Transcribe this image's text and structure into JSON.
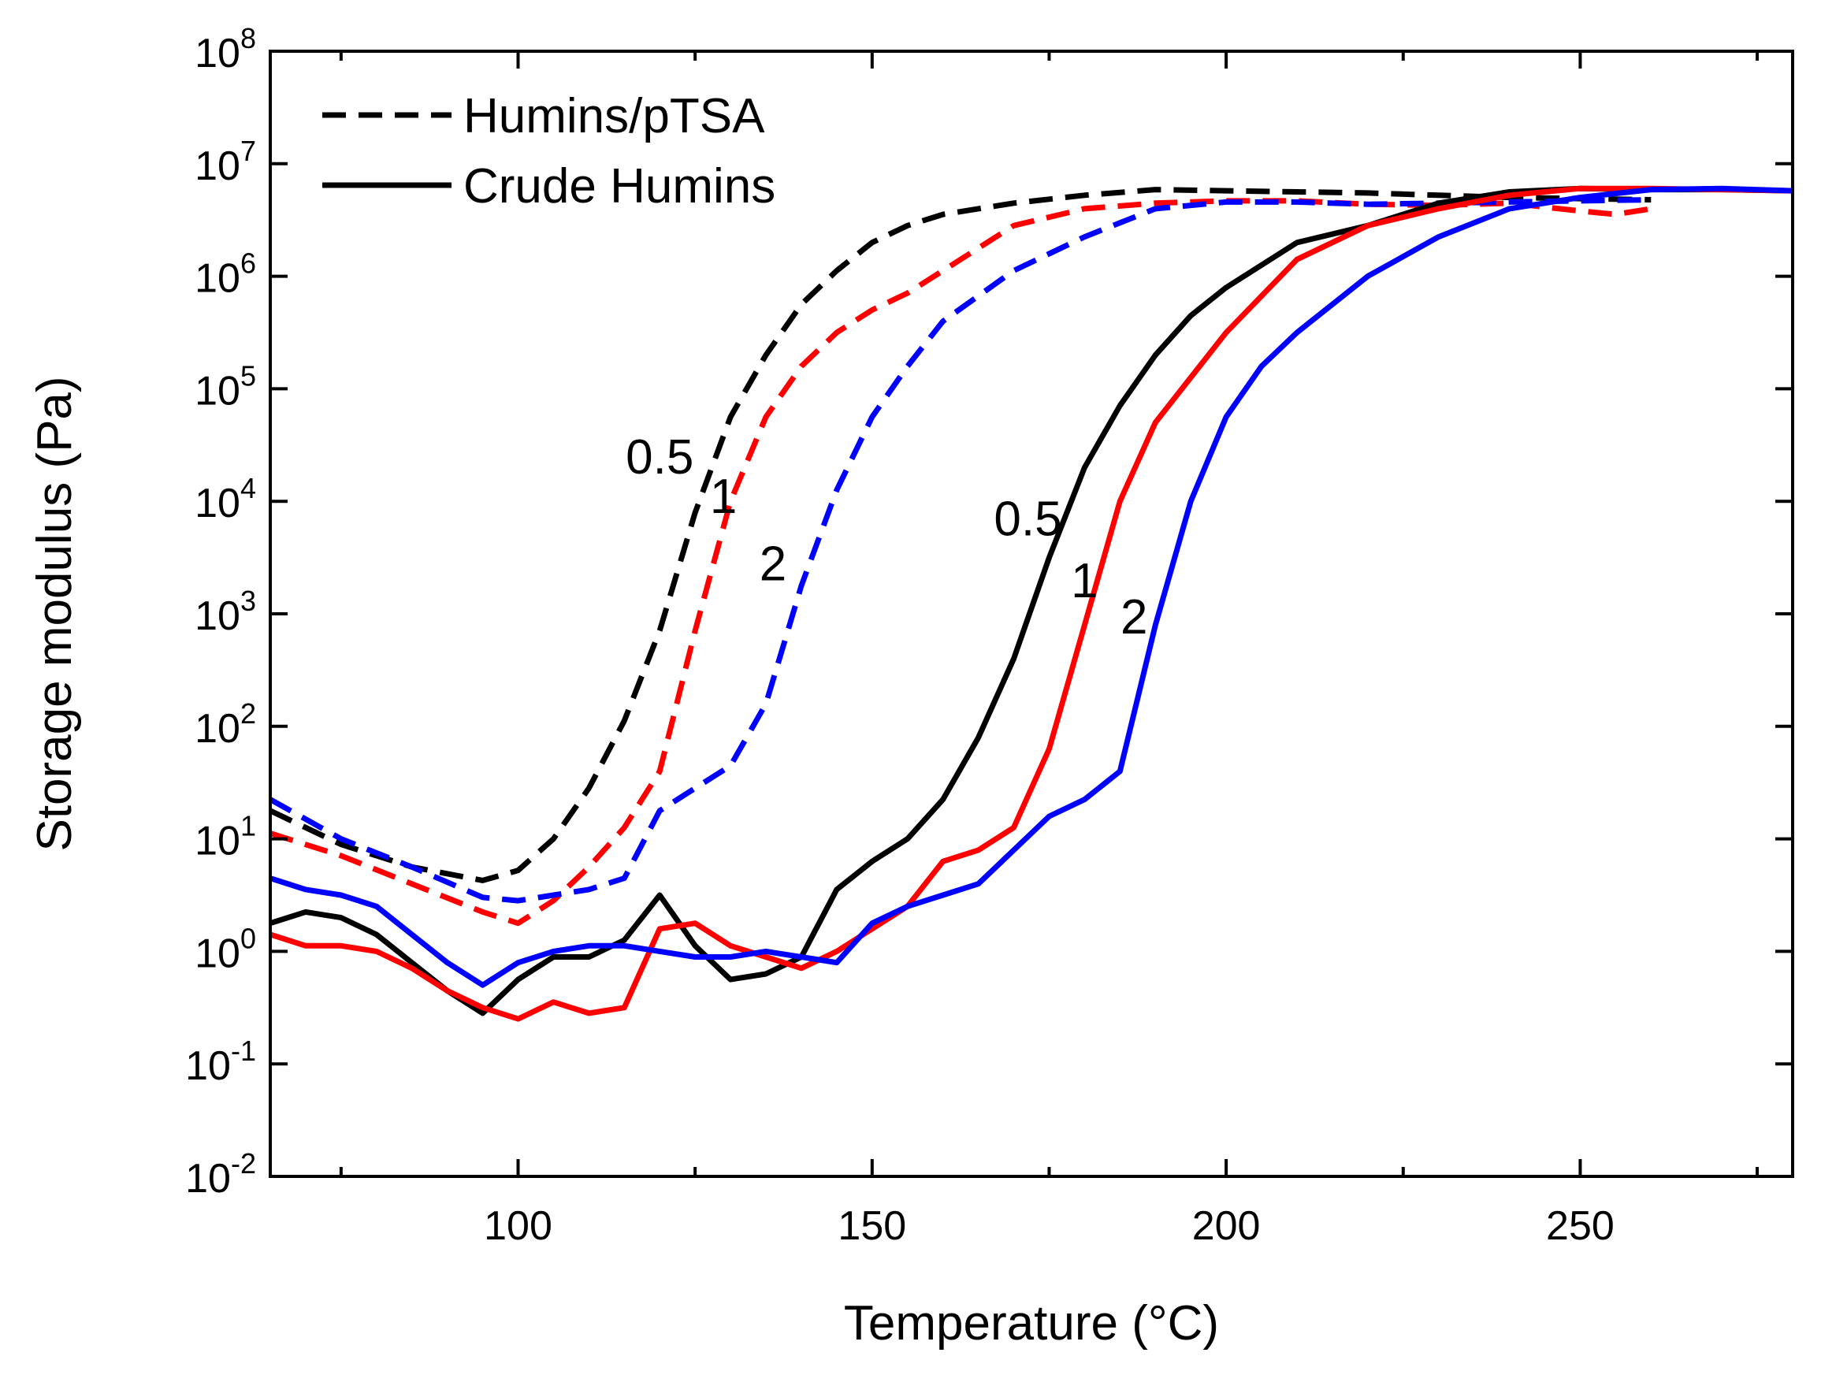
{
  "chart_data": {
    "type": "line",
    "title": "",
    "xlabel": "Temperature (°C)",
    "ylabel": "Storage modulus (Pa)",
    "xlim": [
      65,
      280
    ],
    "ylim_log10": [
      -2,
      8
    ],
    "yscale": "log",
    "x_ticks": [
      100,
      150,
      200,
      250
    ],
    "x_minor_ticks": [
      75,
      125,
      175,
      225,
      275
    ],
    "y_ticks": [
      {
        "base": "10",
        "exp": "8"
      },
      {
        "base": "10",
        "exp": "7"
      },
      {
        "base": "10",
        "exp": "6"
      },
      {
        "base": "10",
        "exp": "5"
      },
      {
        "base": "10",
        "exp": "4"
      },
      {
        "base": "10",
        "exp": "3"
      },
      {
        "base": "10",
        "exp": "2"
      },
      {
        "base": "10",
        "exp": "1"
      },
      {
        "base": "10",
        "exp": "0"
      },
      {
        "base": "10",
        "exp": "-1"
      },
      {
        "base": "10",
        "exp": "-2"
      }
    ],
    "legend": [
      {
        "label": "Humins/pTSA",
        "style": "dashed",
        "color": "#000000"
      },
      {
        "label": "Crude Humins",
        "style": "solid",
        "color": "#000000"
      }
    ],
    "annotations": [
      {
        "text": "0.5",
        "x": 120,
        "log10y": 4.4
      },
      {
        "text": "1",
        "x": 129,
        "log10y": 4.05
      },
      {
        "text": "2",
        "x": 136,
        "log10y": 3.45
      },
      {
        "text": "0.5",
        "x": 172,
        "log10y": 3.85
      },
      {
        "text": "1",
        "x": 180,
        "log10y": 3.3
      },
      {
        "text": "2",
        "x": 187,
        "log10y": 2.98
      }
    ],
    "series": [
      {
        "name": "Humins/pTSA 0.5",
        "style": "dashed",
        "color": "#000000",
        "x": [
          65,
          75,
          85,
          95,
          100,
          105,
          110,
          115,
          120,
          125,
          130,
          135,
          140,
          145,
          150,
          155,
          160,
          170,
          180,
          190,
          200,
          210,
          220,
          230,
          240,
          250,
          260
        ],
        "log10y": [
          1.25,
          0.95,
          0.75,
          0.63,
          0.72,
          1.0,
          1.45,
          2.05,
          2.85,
          3.9,
          4.75,
          5.3,
          5.75,
          6.05,
          6.3,
          6.45,
          6.55,
          6.65,
          6.72,
          6.77,
          6.76,
          6.75,
          6.74,
          6.72,
          6.7,
          6.69,
          6.68
        ]
      },
      {
        "name": "Humins/pTSA 1",
        "style": "dashed",
        "color": "#ff0000",
        "x": [
          65,
          75,
          85,
          95,
          100,
          105,
          110,
          115,
          120,
          125,
          130,
          135,
          140,
          145,
          150,
          155,
          160,
          170,
          180,
          190,
          200,
          210,
          220,
          230,
          240,
          250,
          255,
          260
        ],
        "log10y": [
          1.05,
          0.85,
          0.6,
          0.35,
          0.25,
          0.45,
          0.75,
          1.1,
          1.6,
          2.85,
          4.0,
          4.75,
          5.2,
          5.5,
          5.7,
          5.85,
          6.05,
          6.45,
          6.6,
          6.65,
          6.67,
          6.67,
          6.64,
          6.63,
          6.65,
          6.58,
          6.55,
          6.6
        ]
      },
      {
        "name": "Humins/pTSA 2",
        "style": "dashed",
        "color": "#0000ff",
        "x": [
          65,
          75,
          85,
          95,
          100,
          105,
          110,
          115,
          120,
          125,
          130,
          135,
          140,
          145,
          150,
          155,
          160,
          170,
          180,
          190,
          200,
          210,
          220,
          230,
          240,
          250,
          260
        ],
        "log10y": [
          1.35,
          1.0,
          0.75,
          0.48,
          0.45,
          0.5,
          0.55,
          0.65,
          1.25,
          1.45,
          1.65,
          2.2,
          3.25,
          4.1,
          4.75,
          5.2,
          5.6,
          6.05,
          6.35,
          6.6,
          6.66,
          6.66,
          6.64,
          6.65,
          6.66,
          6.67,
          6.68
        ]
      },
      {
        "name": "Crude Humins 0.5",
        "style": "solid",
        "color": "#000000",
        "x": [
          65,
          70,
          75,
          80,
          85,
          90,
          95,
          100,
          105,
          110,
          115,
          120,
          125,
          130,
          135,
          140,
          145,
          150,
          155,
          160,
          165,
          170,
          175,
          180,
          185,
          190,
          195,
          200,
          210,
          220,
          230,
          240,
          250,
          260,
          270,
          280
        ],
        "log10y": [
          0.25,
          0.35,
          0.3,
          0.15,
          -0.1,
          -0.35,
          -0.55,
          -0.25,
          -0.05,
          -0.05,
          0.1,
          0.5,
          0.05,
          -0.25,
          -0.2,
          -0.05,
          0.55,
          0.8,
          1.0,
          1.35,
          1.9,
          2.6,
          3.5,
          4.3,
          4.85,
          5.3,
          5.65,
          5.9,
          6.3,
          6.45,
          6.65,
          6.75,
          6.78,
          6.77,
          6.77,
          6.76
        ]
      },
      {
        "name": "Crude Humins 1",
        "style": "solid",
        "color": "#ff0000",
        "x": [
          65,
          70,
          75,
          80,
          85,
          90,
          95,
          100,
          105,
          110,
          115,
          120,
          125,
          130,
          135,
          140,
          145,
          150,
          155,
          160,
          165,
          170,
          175,
          180,
          185,
          190,
          195,
          200,
          210,
          220,
          230,
          240,
          250,
          260,
          270,
          280
        ],
        "log10y": [
          0.15,
          0.05,
          0.05,
          0.0,
          -0.15,
          -0.35,
          -0.5,
          -0.6,
          -0.45,
          -0.55,
          -0.5,
          0.2,
          0.25,
          0.05,
          -0.05,
          -0.15,
          0.0,
          0.2,
          0.4,
          0.8,
          0.9,
          1.1,
          1.8,
          2.9,
          4.0,
          4.7,
          5.1,
          5.5,
          6.15,
          6.45,
          6.6,
          6.72,
          6.78,
          6.78,
          6.77,
          6.76
        ]
      },
      {
        "name": "Crude Humins 2",
        "style": "solid",
        "color": "#0000ff",
        "x": [
          65,
          70,
          75,
          80,
          85,
          90,
          95,
          100,
          105,
          110,
          115,
          120,
          125,
          130,
          135,
          140,
          145,
          150,
          155,
          160,
          165,
          170,
          175,
          180,
          185,
          190,
          195,
          200,
          205,
          210,
          220,
          230,
          240,
          250,
          260,
          270,
          280
        ],
        "log10y": [
          0.65,
          0.55,
          0.5,
          0.4,
          0.15,
          -0.1,
          -0.3,
          -0.1,
          0.0,
          0.05,
          0.05,
          0.0,
          -0.05,
          -0.05,
          0.0,
          -0.05,
          -0.1,
          0.25,
          0.4,
          0.5,
          0.6,
          0.9,
          1.2,
          1.35,
          1.6,
          2.9,
          4.0,
          4.75,
          5.2,
          5.5,
          6.0,
          6.35,
          6.6,
          6.7,
          6.77,
          6.78,
          6.76
        ]
      }
    ]
  }
}
